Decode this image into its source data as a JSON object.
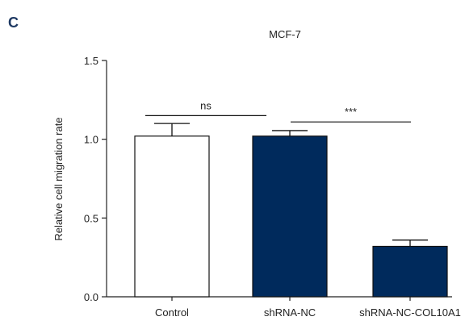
{
  "panel_label": "C",
  "chart_data": {
    "type": "bar",
    "title": "MCF-7",
    "xlabel": "",
    "ylabel": "Relative cell migration rate",
    "categories": [
      "Control",
      "shRNA-NC",
      "shRNA-NC-COL10A1"
    ],
    "values": [
      1.02,
      1.02,
      0.32
    ],
    "errors": [
      0.08,
      0.035,
      0.04
    ],
    "bar_fills": [
      "#ffffff",
      "#002a5c",
      "#002a5c"
    ],
    "ylim": [
      0,
      1.5
    ],
    "yticks": [
      0.0,
      0.5,
      1.0,
      1.5
    ],
    "ytick_labels": [
      "0.0",
      "0.5",
      "1.0",
      "1.5"
    ],
    "grid": false,
    "significance": [
      {
        "from": 0,
        "to": 1,
        "label": "ns",
        "y": 1.15
      },
      {
        "from": 1,
        "to": 2,
        "label": "***",
        "y": 1.11
      }
    ]
  }
}
